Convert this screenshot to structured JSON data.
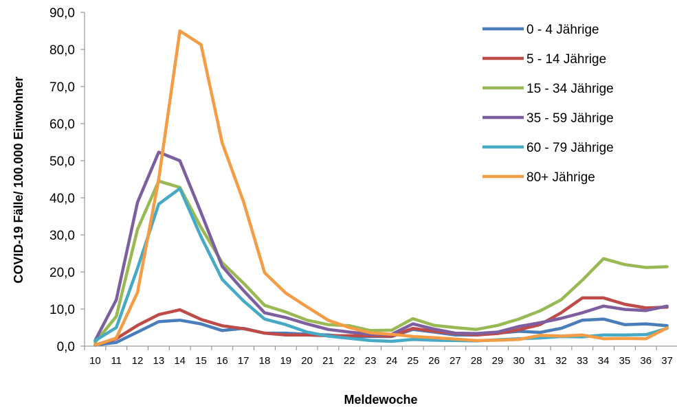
{
  "chart_data": {
    "type": "line",
    "xlabel": "Meldewoche",
    "ylabel": "COVID-19 Fälle/ 100.000 Einwohner",
    "ylim": [
      0,
      90
    ],
    "y_ticks": [
      "0,0",
      "10,0",
      "20,0",
      "30,0",
      "40,0",
      "50,0",
      "60,0",
      "70,0",
      "80,0",
      "90,0"
    ],
    "categories": [
      "10",
      "11",
      "12",
      "13",
      "14",
      "15",
      "16",
      "17",
      "18",
      "19",
      "20",
      "21",
      "22",
      "23",
      "24",
      "25",
      "26",
      "27",
      "28",
      "29",
      "30",
      "31",
      "32",
      "33",
      "34",
      "35",
      "36",
      "37"
    ],
    "legend_position": "top-right",
    "grid": false,
    "series": [
      {
        "name": "0 - 4 Jährige",
        "color": "#4a7ebb",
        "values": [
          0.3,
          1.0,
          3.8,
          6.6,
          7.0,
          6.0,
          4.2,
          4.8,
          3.5,
          3.5,
          3.2,
          3.0,
          2.5,
          2.6,
          2.6,
          4.5,
          3.8,
          3.0,
          3.0,
          3.5,
          4.0,
          3.7,
          4.8,
          7.0,
          7.3,
          5.8,
          6.0,
          5.5
        ]
      },
      {
        "name": "5 - 14 Jährige",
        "color": "#be4b48",
        "values": [
          0.3,
          2.0,
          5.6,
          8.5,
          9.8,
          7.2,
          5.5,
          4.7,
          3.5,
          3.0,
          3.0,
          2.8,
          2.8,
          2.8,
          2.7,
          4.8,
          4.0,
          3.4,
          3.0,
          3.4,
          4.4,
          5.8,
          9.0,
          13.0,
          13.0,
          11.3,
          10.3,
          10.5
        ]
      },
      {
        "name": "15 - 34 Jährige",
        "color": "#98b954",
        "values": [
          1.0,
          8.0,
          31.5,
          44.5,
          42.8,
          32.0,
          22.5,
          17.0,
          11.0,
          9.2,
          7.0,
          5.8,
          5.5,
          4.2,
          4.3,
          7.4,
          5.6,
          5.0,
          4.5,
          5.6,
          7.3,
          9.5,
          12.5,
          17.8,
          23.6,
          22.0,
          21.2,
          21.4
        ]
      },
      {
        "name": "35 - 59 Jährige",
        "color": "#7d5fa0",
        "values": [
          1.5,
          12.5,
          38.8,
          52.3,
          50.0,
          36.0,
          21.5,
          15.0,
          9.0,
          7.7,
          6.0,
          4.5,
          3.8,
          3.2,
          3.2,
          6.0,
          4.6,
          3.5,
          3.4,
          3.8,
          5.3,
          6.3,
          7.5,
          9.0,
          10.8,
          9.9,
          9.6,
          10.8
        ]
      },
      {
        "name": "60 - 79 Jährige",
        "color": "#46aac5",
        "values": [
          1.5,
          5.0,
          21.0,
          38.3,
          42.5,
          29.5,
          18.0,
          12.2,
          7.3,
          5.8,
          3.8,
          2.7,
          2.1,
          1.5,
          1.3,
          1.8,
          1.6,
          1.5,
          1.4,
          1.7,
          2.0,
          2.2,
          2.6,
          2.5,
          3.0,
          3.0,
          3.1,
          4.8
        ]
      },
      {
        "name": "80+ Jährige",
        "color": "#f59c46",
        "values": [
          0.2,
          2.2,
          14.5,
          45.0,
          85.0,
          81.3,
          54.8,
          39.0,
          19.8,
          14.3,
          10.6,
          7.0,
          5.0,
          3.6,
          3.2,
          2.6,
          2.3,
          1.9,
          1.5,
          1.6,
          1.8,
          2.9,
          2.7,
          3.0,
          2.0,
          2.1,
          2.0,
          4.9
        ]
      }
    ]
  }
}
